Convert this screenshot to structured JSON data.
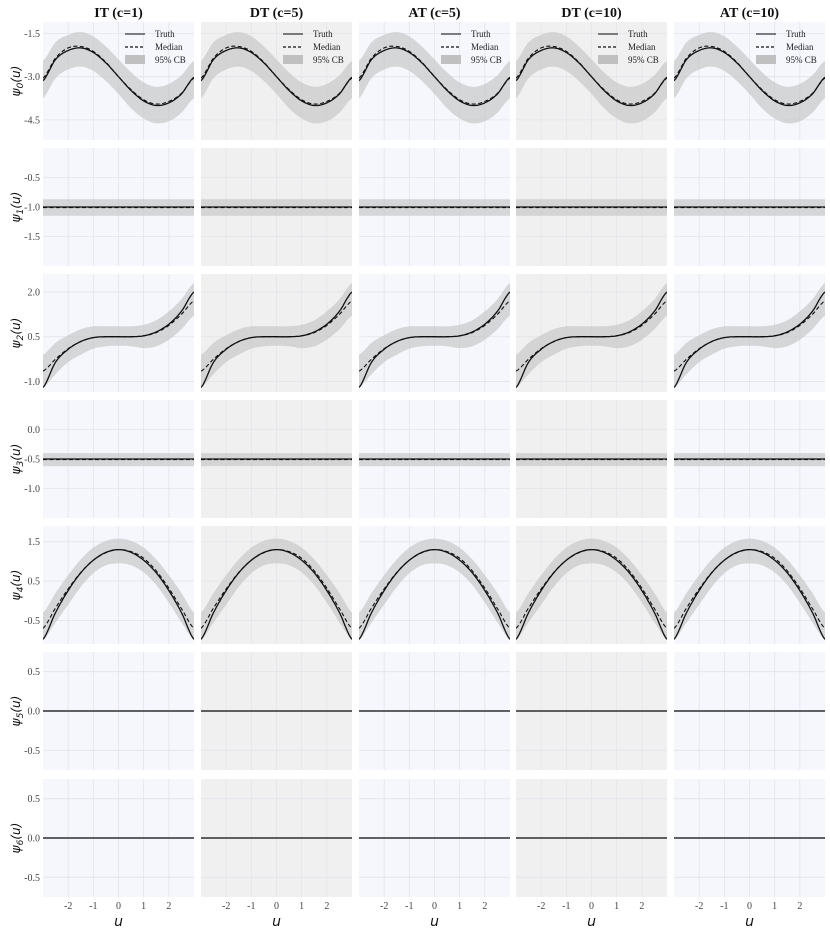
{
  "chart_data": {
    "type": "line",
    "columns": [
      "IT (c=1)",
      "DT (c=5)",
      "AT (c=5)",
      "DT (c=10)",
      "AT (c=10)"
    ],
    "column_backgrounds": [
      "#f5f7fd",
      "#f0f0f0",
      "#f5f7fd",
      "#f0f0f0",
      "#f5f7fd"
    ],
    "legend": {
      "truth": "Truth",
      "median": "Median",
      "band": "95% CB",
      "placement": "top-right"
    },
    "xlabel": "u",
    "xlim": [
      -3,
      3
    ],
    "xticks": [
      -2,
      -1,
      0,
      1,
      2
    ],
    "x_tick_labels": [
      "-2",
      "-1",
      "0",
      "1",
      "2"
    ],
    "x": [
      -3,
      -2.5,
      -2,
      -1.5,
      -1,
      -0.5,
      0,
      0.5,
      1,
      1.5,
      2,
      2.5,
      3
    ],
    "rows": [
      {
        "ylabel_base": "ψ",
        "ylabel_sub": "0",
        "ylabel_arg": "(u)",
        "ylim": [
          -5.2,
          -1.1
        ],
        "yticks": [
          -1.5,
          -3.0,
          -4.5
        ],
        "ytick_labels": [
          "-1.5",
          "-3.0",
          "-4.5"
        ],
        "truth": [
          -3.14,
          -2.4,
          -2.09,
          -2.0,
          -2.16,
          -2.52,
          -3.0,
          -3.48,
          -3.84,
          -4.0,
          -3.91,
          -3.6,
          -3.02
        ],
        "median": [
          -3.05,
          -2.35,
          -2.0,
          -1.95,
          -2.12,
          -2.5,
          -3.0,
          -3.45,
          -3.8,
          -3.95,
          -3.86,
          -3.58,
          -3.05
        ],
        "lower": [
          -3.75,
          -3.05,
          -2.75,
          -2.65,
          -2.8,
          -3.15,
          -3.6,
          -4.1,
          -4.45,
          -4.62,
          -4.55,
          -4.25,
          -3.75
        ],
        "upper": [
          -2.45,
          -1.8,
          -1.55,
          -1.45,
          -1.6,
          -1.95,
          -2.4,
          -2.85,
          -3.2,
          -3.35,
          -3.25,
          -2.95,
          -2.45
        ]
      },
      {
        "ylabel_base": "ψ",
        "ylabel_sub": "1",
        "ylabel_arg": "(u)",
        "ylim": [
          -2.0,
          0.0
        ],
        "yticks": [
          -0.5,
          -1.0,
          -1.5
        ],
        "ytick_labels": [
          "-0.5",
          "-1.0",
          "-1.5"
        ],
        "truth": [
          -1.0,
          -1.0,
          -1.0,
          -1.0,
          -1.0,
          -1.0,
          -1.0,
          -1.0,
          -1.0,
          -1.0,
          -1.0,
          -1.0,
          -1.0
        ],
        "median": [
          -1.01,
          -1.01,
          -1.01,
          -1.01,
          -1.01,
          -1.01,
          -1.01,
          -1.01,
          -1.01,
          -1.01,
          -1.01,
          -1.01,
          -1.01
        ],
        "lower": [
          -1.15,
          -1.15,
          -1.15,
          -1.15,
          -1.15,
          -1.15,
          -1.15,
          -1.15,
          -1.15,
          -1.15,
          -1.15,
          -1.15,
          -1.15
        ],
        "upper": [
          -0.87,
          -0.87,
          -0.87,
          -0.87,
          -0.87,
          -0.87,
          -0.87,
          -0.87,
          -0.87,
          -0.87,
          -0.87,
          -0.87,
          -0.87
        ]
      },
      {
        "ylabel_base": "ψ",
        "ylabel_sub": "2",
        "ylabel_arg": "(u)",
        "ylim": [
          -1.35,
          2.6
        ],
        "yticks": [
          2.0,
          0.5,
          -1.0
        ],
        "ytick_labels": [
          "2.0",
          "0.5",
          "-1.0"
        ],
        "truth": [
          -1.2,
          -0.35,
          0.08,
          0.34,
          0.47,
          0.5,
          0.5,
          0.5,
          0.53,
          0.66,
          0.92,
          1.35,
          2.0
        ],
        "median": [
          -0.65,
          -0.25,
          0.1,
          0.34,
          0.47,
          0.5,
          0.5,
          0.5,
          0.53,
          0.64,
          0.88,
          1.25,
          1.7
        ],
        "lower": [
          -1.2,
          -0.75,
          -0.35,
          -0.1,
          0.1,
          0.18,
          0.2,
          0.18,
          0.12,
          0.18,
          0.4,
          0.75,
          1.2
        ],
        "upper": [
          -0.1,
          0.3,
          0.55,
          0.75,
          0.85,
          0.85,
          0.85,
          0.85,
          0.9,
          1.05,
          1.35,
          1.75,
          2.3
        ]
      },
      {
        "ylabel_base": "ψ",
        "ylabel_sub": "3",
        "ylabel_arg": "(u)",
        "ylim": [
          -1.5,
          0.5
        ],
        "yticks": [
          0.0,
          -0.5,
          -1.0
        ],
        "ytick_labels": [
          "0.0",
          "-0.5",
          "-1.0"
        ],
        "truth": [
          -0.5,
          -0.5,
          -0.5,
          -0.5,
          -0.5,
          -0.5,
          -0.5,
          -0.5,
          -0.5,
          -0.5,
          -0.5,
          -0.5,
          -0.5
        ],
        "median": [
          -0.51,
          -0.51,
          -0.51,
          -0.51,
          -0.51,
          -0.51,
          -0.51,
          -0.51,
          -0.51,
          -0.51,
          -0.51,
          -0.51,
          -0.51
        ],
        "lower": [
          -0.62,
          -0.62,
          -0.62,
          -0.62,
          -0.62,
          -0.62,
          -0.62,
          -0.62,
          -0.62,
          -0.62,
          -0.62,
          -0.62,
          -0.62
        ],
        "upper": [
          -0.4,
          -0.4,
          -0.4,
          -0.4,
          -0.4,
          -0.4,
          -0.4,
          -0.4,
          -0.4,
          -0.4,
          -0.4,
          -0.4,
          -0.4
        ]
      },
      {
        "ylabel_base": "ψ",
        "ylabel_sub": "4",
        "ylabel_arg": "(u)",
        "ylim": [
          -1.1,
          1.9
        ],
        "yticks": [
          1.5,
          0.5,
          -0.5
        ],
        "ytick_labels": [
          "1.5",
          "0.5",
          "-0.5"
        ],
        "truth": [
          -0.98,
          -0.3,
          0.26,
          0.71,
          1.03,
          1.23,
          1.3,
          1.23,
          1.03,
          0.71,
          0.26,
          -0.3,
          -0.98
        ],
        "median": [
          -0.7,
          -0.18,
          0.3,
          0.72,
          1.03,
          1.22,
          1.3,
          1.25,
          1.08,
          0.76,
          0.32,
          -0.2,
          -0.7
        ],
        "lower": [
          -1.0,
          -0.55,
          -0.1,
          0.35,
          0.7,
          0.9,
          0.95,
          0.9,
          0.72,
          0.4,
          -0.05,
          -0.55,
          -1.0
        ],
        "upper": [
          -0.3,
          0.2,
          0.65,
          1.05,
          1.35,
          1.52,
          1.58,
          1.52,
          1.35,
          1.05,
          0.65,
          0.2,
          -0.3
        ]
      },
      {
        "ylabel_base": "ψ",
        "ylabel_sub": "5",
        "ylabel_arg": "(u)",
        "ylim": [
          -0.75,
          0.75
        ],
        "yticks": [
          0.5,
          0.0,
          -0.5
        ],
        "ytick_labels": [
          "0.5",
          "0.0",
          "-0.5"
        ],
        "truth": [
          0,
          0,
          0,
          0,
          0,
          0,
          0,
          0,
          0,
          0,
          0,
          0,
          0
        ],
        "median": [
          0,
          0,
          0,
          0,
          0,
          0,
          0,
          0,
          0,
          0,
          0,
          0,
          0
        ],
        "lower": [
          -0.01,
          -0.01,
          -0.01,
          -0.01,
          -0.01,
          -0.01,
          -0.01,
          -0.01,
          -0.01,
          -0.01,
          -0.01,
          -0.01,
          -0.01
        ],
        "upper": [
          0.01,
          0.01,
          0.01,
          0.01,
          0.01,
          0.01,
          0.01,
          0.01,
          0.01,
          0.01,
          0.01,
          0.01,
          0.01
        ]
      },
      {
        "ylabel_base": "ψ",
        "ylabel_sub": "6",
        "ylabel_arg": "(u)",
        "ylim": [
          -0.75,
          0.75
        ],
        "yticks": [
          0.5,
          0.0,
          -0.5
        ],
        "ytick_labels": [
          "0.5",
          "0.0",
          "-0.5"
        ],
        "truth": [
          0,
          0,
          0,
          0,
          0,
          0,
          0,
          0,
          0,
          0,
          0,
          0,
          0
        ],
        "median": [
          0,
          0,
          0,
          0,
          0,
          0,
          0,
          0,
          0,
          0,
          0,
          0,
          0
        ],
        "lower": [
          -0.01,
          -0.01,
          -0.01,
          -0.01,
          -0.01,
          -0.01,
          -0.01,
          -0.01,
          -0.01,
          -0.01,
          -0.01,
          -0.01,
          -0.01
        ],
        "upper": [
          0.01,
          0.01,
          0.01,
          0.01,
          0.01,
          0.01,
          0.01,
          0.01,
          0.01,
          0.01,
          0.01,
          0.01,
          0.01
        ]
      }
    ]
  }
}
